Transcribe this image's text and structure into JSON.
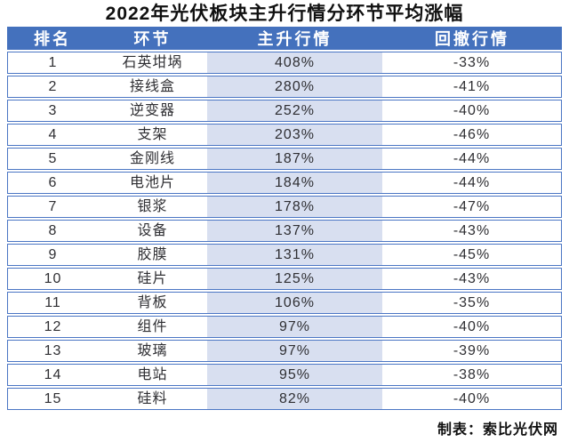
{
  "title": "2022年光伏板块主升行情分环节平均涨幅",
  "footer": "制表：索比光伏网",
  "colors": {
    "header_bg": "#4471bd",
    "row_border": "#4b76c4",
    "uptrend_column_bg": "#d8dff0",
    "header_text": "#ffffff",
    "title_text": "#101010",
    "cell_text": "#2f2f33"
  },
  "chart_data": {
    "type": "table",
    "title": "2022年光伏板块主升行情分环节平均涨幅",
    "columns": [
      "排名",
      "环节",
      "主升行情",
      "回撤行情"
    ],
    "rows": [
      [
        "1",
        "石英坩埚",
        "408%",
        "-33%"
      ],
      [
        "2",
        "接线盒",
        "280%",
        "-41%"
      ],
      [
        "3",
        "逆变器",
        "252%",
        "-40%"
      ],
      [
        "4",
        "支架",
        "203%",
        "-46%"
      ],
      [
        "5",
        "金刚线",
        "187%",
        "-44%"
      ],
      [
        "6",
        "电池片",
        "184%",
        "-44%"
      ],
      [
        "7",
        "银浆",
        "178%",
        "-47%"
      ],
      [
        "8",
        "设备",
        "137%",
        "-43%"
      ],
      [
        "9",
        "胶膜",
        "131%",
        "-45%"
      ],
      [
        "10",
        "硅片",
        "125%",
        "-43%"
      ],
      [
        "11",
        "背板",
        "106%",
        "-35%"
      ],
      [
        "12",
        "组件",
        "97%",
        "-40%"
      ],
      [
        "13",
        "玻璃",
        "97%",
        "-39%"
      ],
      [
        "14",
        "电站",
        "95%",
        "-38%"
      ],
      [
        "15",
        "硅料",
        "82%",
        "-40%"
      ]
    ]
  }
}
